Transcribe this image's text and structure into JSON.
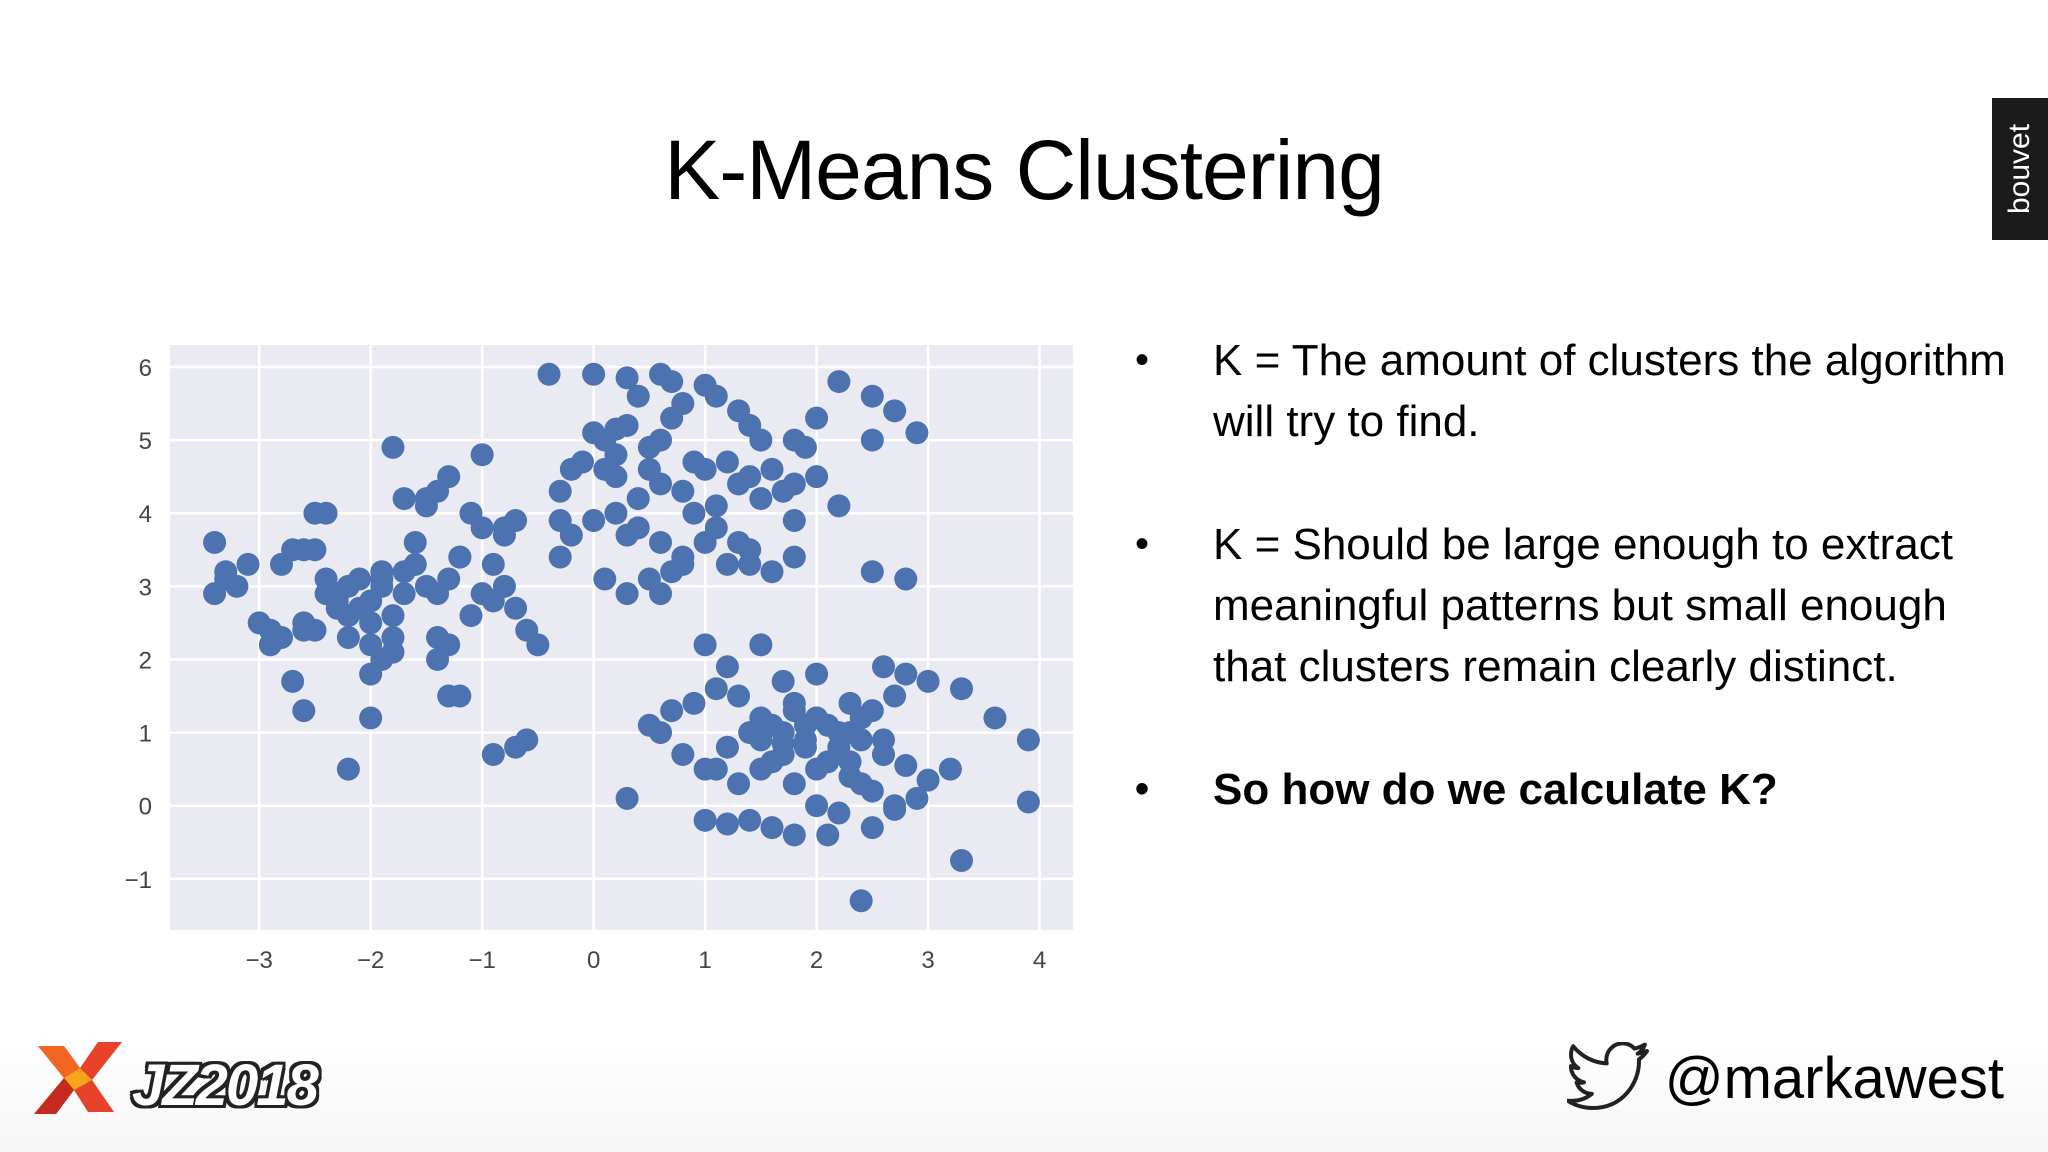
{
  "slide": {
    "title": "K-Means Clustering",
    "brand": "bouvet"
  },
  "bullets": [
    {
      "text": "K = The amount of clusters the algorithm will try to find.",
      "bold": false
    },
    {
      "text": "K = Should be large enough to extract meaningful patterns but small enough that clusters remain clearly distinct.",
      "bold": false
    },
    {
      "text": "So how do we calculate K?",
      "bold": true
    }
  ],
  "bullet_glyph": "•",
  "footer": {
    "logo_text": "JZ2018",
    "twitter_handle": "@markawest",
    "twitter_icon": "twitter-bird-icon"
  },
  "colors": {
    "marker": "#4C72B0",
    "plot_bg": "#EAEAF2",
    "grid": "#FFFFFF",
    "twitter_icon": "#222222",
    "brand_tab": "#1B1B1B"
  },
  "chart_data": {
    "type": "scatter",
    "title": "",
    "xlabel": "",
    "ylabel": "",
    "xlim": [
      -3.8,
      4.3
    ],
    "ylim": [
      -1.7,
      6.3
    ],
    "xticks": [
      -3,
      -2,
      -1,
      0,
      1,
      2,
      3,
      4
    ],
    "yticks": [
      -1,
      0,
      1,
      2,
      3,
      4,
      5,
      6
    ],
    "xtick_labels": [
      "−3",
      "−2",
      "−1",
      "0",
      "1",
      "2",
      "3",
      "4"
    ],
    "ytick_labels": [
      "−1",
      "0",
      "1",
      "2",
      "3",
      "4",
      "5",
      "6"
    ],
    "grid": true,
    "series": [
      {
        "x": [
          -3.4,
          -3.3,
          -3.2,
          -3.1,
          -3.4,
          -3.3,
          -3.0,
          -2.9,
          -2.7,
          -2.8,
          -2.6,
          -2.5,
          -2.6,
          -2.4,
          -2.3,
          -2.2,
          -2.5,
          -2.4,
          -2.3,
          -2.2,
          -2.1,
          -2.0,
          -1.9,
          -2.0,
          -1.8,
          -1.7,
          -1.9,
          -2.1,
          -2.3,
          -2.2,
          -2.0,
          -1.8,
          -1.9,
          -1.7,
          -1.6,
          -1.5,
          -1.4,
          -1.3,
          -1.2,
          -1.4,
          -1.3,
          -1.1,
          -1.0,
          -0.9,
          -0.8,
          -0.7,
          -0.9,
          -0.8,
          -0.7,
          -0.6,
          -0.5,
          -1.5,
          -1.4,
          -1.3,
          -1.6,
          -1.2,
          -1.0,
          -0.7,
          -0.6,
          -1.3,
          -1.2,
          -1.4,
          -1.0,
          -2.7,
          -2.6,
          -2.9,
          -2.6,
          -2.8,
          -2.5,
          -2.4,
          -1.5,
          -1.7,
          -1.8,
          -2.0,
          -2.2,
          -2.0,
          -1.9,
          -1.8,
          -1.1,
          -0.8,
          -0.9
        ],
        "y": [
          3.6,
          3.2,
          3.0,
          3.3,
          2.9,
          3.1,
          2.5,
          2.4,
          3.5,
          3.3,
          3.5,
          3.5,
          2.5,
          2.9,
          2.7,
          2.6,
          2.4,
          3.1,
          2.9,
          3.0,
          2.7,
          2.8,
          3.0,
          2.5,
          2.6,
          2.9,
          3.2,
          3.1,
          2.8,
          2.3,
          2.2,
          2.3,
          3.1,
          3.2,
          3.3,
          3.0,
          2.9,
          3.1,
          3.4,
          2.3,
          2.2,
          2.6,
          2.9,
          2.8,
          3.0,
          2.7,
          3.3,
          3.8,
          3.9,
          2.4,
          2.2,
          4.2,
          4.3,
          4.5,
          3.6,
          3.4,
          3.8,
          0.8,
          0.9,
          1.5,
          1.5,
          2.0,
          4.8,
          1.7,
          1.3,
          2.2,
          2.4,
          2.3,
          4.0,
          4.0,
          4.1,
          4.2,
          4.9,
          1.2,
          0.5,
          1.8,
          2.0,
          2.1,
          4.0,
          3.7,
          0.7
        ]
      },
      {
        "x": [
          -0.4,
          0.0,
          0.3,
          0.6,
          0.7,
          1.0,
          0.4,
          0.8,
          1.1,
          1.3,
          0.0,
          0.1,
          0.2,
          0.3,
          0.5,
          0.6,
          0.7,
          0.9,
          1.0,
          1.2,
          1.4,
          1.6,
          1.8,
          2.0,
          1.9,
          1.7,
          1.5,
          1.3,
          1.1,
          0.9,
          0.8,
          0.6,
          0.4,
          0.2,
          0.1,
          -0.1,
          -0.2,
          -0.3,
          -0.3,
          -0.2,
          0.0,
          0.2,
          0.4,
          0.6,
          0.8,
          1.0,
          1.2,
          1.4,
          1.6,
          1.8,
          2.2,
          2.5,
          2.7,
          2.9,
          2.5,
          2.2,
          2.0,
          1.8,
          1.4,
          1.5,
          0.8,
          0.5,
          0.3,
          0.1,
          -0.3,
          0.6,
          1.1,
          0.3,
          0.7,
          0.2,
          0.5,
          1.4,
          1.3,
          1.8,
          2.5,
          2.8
        ],
        "y": [
          5.9,
          5.9,
          5.85,
          5.9,
          5.8,
          5.75,
          5.6,
          5.5,
          5.6,
          5.4,
          5.1,
          5.0,
          5.15,
          5.2,
          4.9,
          5.0,
          5.3,
          4.7,
          4.6,
          4.7,
          4.5,
          4.6,
          4.4,
          4.5,
          4.9,
          4.3,
          4.2,
          4.4,
          4.1,
          4.0,
          4.3,
          4.4,
          4.2,
          4.5,
          4.6,
          4.7,
          4.6,
          4.3,
          3.9,
          3.7,
          3.9,
          4.0,
          3.8,
          3.6,
          3.4,
          3.6,
          3.3,
          3.5,
          3.2,
          3.4,
          4.1,
          5.0,
          5.4,
          5.1,
          5.6,
          5.8,
          5.3,
          5.0,
          5.2,
          5.0,
          3.3,
          3.1,
          2.9,
          3.1,
          3.4,
          2.9,
          3.8,
          3.7,
          3.2,
          4.8,
          4.6,
          3.3,
          3.6,
          3.9,
          3.2,
          3.1
        ]
      },
      {
        "x": [
          1.0,
          1.2,
          1.5,
          1.7,
          2.0,
          2.3,
          2.6,
          2.8,
          3.0,
          3.3,
          3.6,
          3.9,
          3.9,
          3.3,
          3.0,
          2.8,
          2.6,
          2.4,
          2.2,
          2.0,
          1.8,
          1.6,
          1.4,
          1.2,
          1.0,
          0.8,
          0.6,
          0.5,
          0.7,
          0.9,
          1.1,
          1.3,
          1.5,
          1.7,
          1.9,
          2.1,
          2.3,
          2.5,
          2.7,
          2.9,
          3.2,
          1.6,
          1.8,
          2.0,
          2.2,
          2.4,
          2.6,
          2.7,
          2.5,
          2.3,
          2.1,
          1.9,
          1.7,
          1.5,
          1.3,
          1.1,
          1.6,
          1.8,
          2.0,
          2.2,
          2.4,
          2.6,
          1.4,
          1.2,
          1.0,
          0.3,
          1.7,
          2.1,
          2.4,
          1.5,
          1.8,
          2.0,
          1.9,
          2.3,
          2.5,
          2.7
        ],
        "y": [
          2.2,
          1.9,
          2.2,
          1.7,
          1.8,
          1.4,
          1.9,
          1.8,
          1.7,
          1.6,
          1.2,
          0.9,
          0.05,
          -0.75,
          0.35,
          0.55,
          0.7,
          0.9,
          1.0,
          1.2,
          1.3,
          1.1,
          1.0,
          0.8,
          0.5,
          0.7,
          1.0,
          1.1,
          1.3,
          1.4,
          1.6,
          1.5,
          1.2,
          1.0,
          0.8,
          0.6,
          0.4,
          0.2,
          0.0,
          0.1,
          0.5,
          0.6,
          0.3,
          0.0,
          -0.1,
          0.3,
          0.7,
          1.5,
          1.3,
          1.0,
          1.1,
          0.9,
          0.7,
          0.5,
          0.3,
          0.5,
          -0.3,
          -0.4,
          0.5,
          0.8,
          1.2,
          0.9,
          -0.2,
          -0.25,
          -0.2,
          0.1,
          0.85,
          -0.4,
          -1.3,
          0.9,
          1.4,
          1.2,
          1.1,
          0.6,
          -0.3,
          -0.05
        ]
      }
    ]
  }
}
